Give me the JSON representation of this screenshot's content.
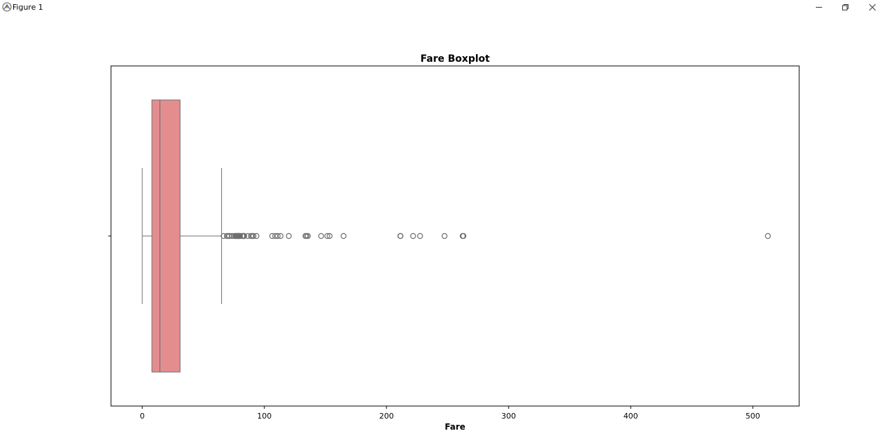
{
  "window": {
    "title": "Figure 1",
    "icons": {
      "app": "figure-app-icon",
      "minimize": "minimize-icon",
      "maximize": "maximize-icon",
      "close": "close-icon"
    }
  },
  "chart_data": {
    "type": "boxplot",
    "orientation": "horizontal",
    "title": "Fare Boxplot",
    "xlabel": "Fare",
    "ylabel": "",
    "xlim": [
      -25.6,
      538.0
    ],
    "xticks": [
      0,
      100,
      200,
      300,
      400,
      500
    ],
    "xtick_labels": [
      "0",
      "100",
      "200",
      "300",
      "400",
      "500"
    ],
    "grid": false,
    "box_color": "#e48d8f",
    "line_color": "#6f6f6f",
    "box": {
      "min": 0,
      "q1": 7.9,
      "median": 14.45,
      "q3": 31,
      "whisker_high": 65
    },
    "outliers": [
      66.6,
      69.3,
      69.55,
      71,
      71.28,
      73.5,
      75.25,
      76.29,
      76.73,
      77.29,
      77.96,
      78.27,
      78.85,
      79.2,
      79.65,
      80,
      81.86,
      82.17,
      83.16,
      83.48,
      86.5,
      89.1,
      90,
      91.08,
      93.5,
      106.43,
      108.9,
      110.88,
      113.28,
      120,
      133.65,
      134.5,
      135.63,
      146.52,
      151.55,
      153.46,
      164.87,
      211.34,
      211.5,
      221.78,
      227.53,
      247.52,
      262.38,
      263,
      512.33
    ]
  }
}
